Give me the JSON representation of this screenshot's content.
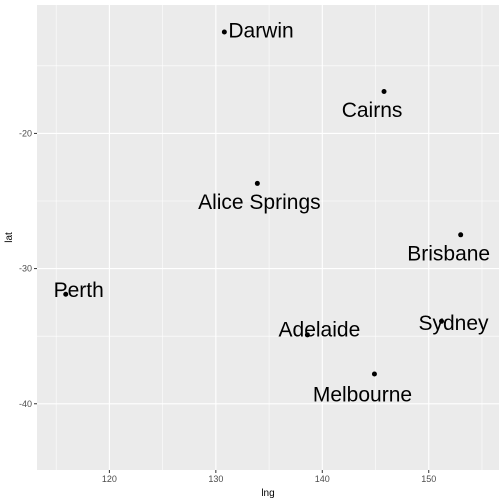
{
  "chart_data": {
    "type": "scatter",
    "title": "",
    "xlabel": "lng",
    "ylabel": "lat",
    "xlim": [
      113.2,
      156.6
    ],
    "ylim": [
      -44.9,
      -10.5
    ],
    "x_ticks": [
      120,
      130,
      140,
      150
    ],
    "y_ticks": [
      -20,
      -30,
      -40
    ],
    "x_tick_labels": [
      "120",
      "130",
      "140",
      "150"
    ],
    "y_tick_labels": [
      "-20",
      "-30",
      "-40"
    ],
    "grid": true,
    "legend": "none",
    "colors": {
      "panel": "#ebebeb",
      "grid": "#ffffff",
      "point": "#000000",
      "tick_text": "#4d4d4d"
    },
    "points": [
      {
        "label": "Darwin",
        "x": 130.8,
        "y": -12.5
      },
      {
        "label": "Cairns",
        "x": 145.8,
        "y": -16.9
      },
      {
        "label": "Alice Springs",
        "x": 133.9,
        "y": -23.7
      },
      {
        "label": "Brisbane",
        "x": 153.0,
        "y": -27.5
      },
      {
        "label": "Adelaide",
        "x": 138.6,
        "y": -34.9
      },
      {
        "label": "Sydney",
        "x": 151.2,
        "y": -33.9
      },
      {
        "label": "Melbourne",
        "x": 144.9,
        "y": -37.8
      },
      {
        "label": "Perth",
        "x": 115.9,
        "y": -31.9
      }
    ]
  }
}
